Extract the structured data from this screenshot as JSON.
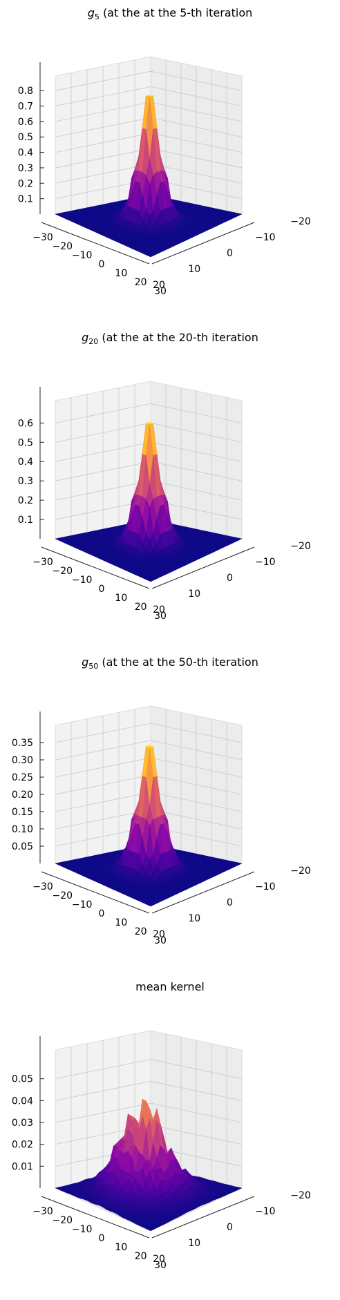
{
  "chart_data": [
    {
      "type": "surface3d",
      "title": "g_5 (at the at the 5-th iteration",
      "title_parts": {
        "symbol": "g",
        "subscript": "5",
        "rest": " (at the at the 5-th iteration"
      },
      "x_ticks": [
        "−30",
        "−20",
        "−10",
        "0",
        "10",
        "20",
        "30"
      ],
      "y_ticks": [
        "20",
        "10",
        "0",
        "−10",
        "−20"
      ],
      "z_ticks": [
        "0.1",
        "0.2",
        "0.3",
        "0.4",
        "0.5",
        "0.6",
        "0.7",
        "0.8"
      ],
      "z_values": [
        0.1,
        0.2,
        0.3,
        0.4,
        0.5,
        0.6,
        0.7,
        0.8
      ],
      "zlim": [
        0,
        0.85
      ],
      "peak": 0.85,
      "colormap": "plasma",
      "grid": true
    },
    {
      "type": "surface3d",
      "title": "g_20 (at the at the 20-th iteration",
      "title_parts": {
        "symbol": "g",
        "subscript": "20",
        "rest": " (at the at the 20-th iteration"
      },
      "x_ticks": [
        "−30",
        "−20",
        "−10",
        "0",
        "10",
        "20",
        "30"
      ],
      "y_ticks": [
        "20",
        "10",
        "0",
        "−10",
        "−20"
      ],
      "z_ticks": [
        "0.1",
        "0.2",
        "0.3",
        "0.4",
        "0.5",
        "0.6"
      ],
      "z_values": [
        0.1,
        0.2,
        0.3,
        0.4,
        0.5,
        0.6
      ],
      "zlim": [
        0,
        0.68
      ],
      "peak": 0.66,
      "colormap": "plasma",
      "grid": true
    },
    {
      "type": "surface3d",
      "title": "g_50 (at the at the 50-th iteration",
      "title_parts": {
        "symbol": "g",
        "subscript": "50",
        "rest": " (at the at the 50-th iteration"
      },
      "x_ticks": [
        "−30",
        "−20",
        "−10",
        "0",
        "10",
        "20",
        "30"
      ],
      "y_ticks": [
        "20",
        "10",
        "0",
        "−10",
        "−20"
      ],
      "z_ticks": [
        "0.05",
        "0.10",
        "0.15",
        "0.20",
        "0.25",
        "0.30",
        "0.35"
      ],
      "z_values": [
        0.05,
        0.1,
        0.15,
        0.2,
        0.25,
        0.3,
        0.35
      ],
      "zlim": [
        0,
        0.38
      ],
      "peak": 0.37,
      "colormap": "plasma",
      "grid": true
    },
    {
      "type": "surface3d",
      "title": "mean kernel",
      "title_parts": {
        "symbol": "",
        "subscript": "",
        "rest": "mean kernel"
      },
      "x_ticks": [
        "−30",
        "−20",
        "−10",
        "0",
        "10",
        "20",
        "30"
      ],
      "y_ticks": [
        "20",
        "10",
        "0",
        "−10",
        "−20"
      ],
      "z_ticks": [
        "0.01",
        "0.02",
        "0.03",
        "0.04",
        "0.05"
      ],
      "z_values": [
        0.01,
        0.02,
        0.03,
        0.04,
        0.05
      ],
      "zlim": [
        0,
        0.06
      ],
      "peak": 0.058,
      "colormap": "plasma",
      "grid": true
    }
  ]
}
